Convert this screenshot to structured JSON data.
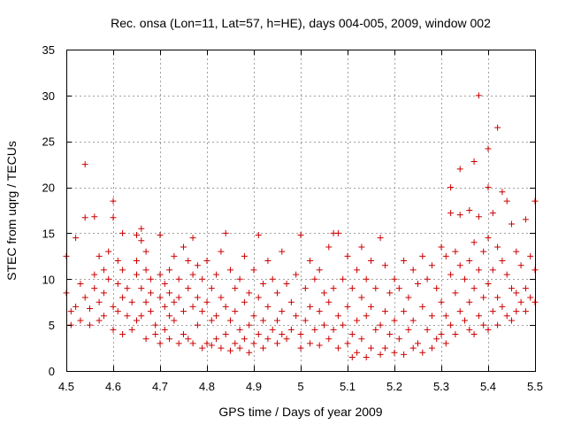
{
  "chart_data": {
    "type": "scatter",
    "title": "Rec. onsa (Lon=11, Lat=57, h=HE), days 004-005, 2009, window 002",
    "xlabel": "GPS time / Days of year 2009",
    "ylabel": "STEC from uqrg / TECUs",
    "xlim": [
      4.5,
      5.5
    ],
    "ylim": [
      0,
      35
    ],
    "xticks": [
      4.5,
      4.6,
      4.7,
      4.8,
      4.9,
      5.0,
      5.1,
      5.2,
      5.3,
      5.4,
      5.5
    ],
    "xtick_labels": [
      "4.5",
      "4.6",
      "4.7",
      "4.8",
      "4.9",
      "5",
      "5.1",
      "5.2",
      "5.3",
      "5.4",
      "5.5"
    ],
    "yticks": [
      0,
      5,
      10,
      15,
      20,
      25,
      30,
      35
    ],
    "ytick_labels": [
      "0",
      "5",
      "10",
      "15",
      "20",
      "25",
      "30",
      "35"
    ],
    "grid": true,
    "marker": "+",
    "color": "#cc0000",
    "series": [
      {
        "name": "STEC",
        "points": [
          [
            4.5,
            12.5
          ],
          [
            4.5,
            8.5
          ],
          [
            4.51,
            6.5
          ],
          [
            4.51,
            5.0
          ],
          [
            4.52,
            14.5
          ],
          [
            4.52,
            7.0
          ],
          [
            4.53,
            5.5
          ],
          [
            4.53,
            9.5
          ],
          [
            4.54,
            22.5
          ],
          [
            4.54,
            16.7
          ],
          [
            4.54,
            8.0
          ],
          [
            4.55,
            5.0
          ],
          [
            4.55,
            6.8
          ],
          [
            4.56,
            16.8
          ],
          [
            4.56,
            9.0
          ],
          [
            4.56,
            10.5
          ],
          [
            4.57,
            12.5
          ],
          [
            4.57,
            7.5
          ],
          [
            4.57,
            5.5
          ],
          [
            4.58,
            11.0
          ],
          [
            4.58,
            8.5
          ],
          [
            4.58,
            6.0
          ],
          [
            4.59,
            13.0
          ],
          [
            4.59,
            10.0
          ],
          [
            4.6,
            18.5
          ],
          [
            4.6,
            16.7
          ],
          [
            4.6,
            7.0
          ],
          [
            4.6,
            4.5
          ],
          [
            4.61,
            12.0
          ],
          [
            4.61,
            9.5
          ],
          [
            4.61,
            6.5
          ],
          [
            4.62,
            15.0
          ],
          [
            4.62,
            11.0
          ],
          [
            4.62,
            8.0
          ],
          [
            4.62,
            4.0
          ],
          [
            4.63,
            9.0
          ],
          [
            4.63,
            6.0
          ],
          [
            4.64,
            7.5
          ],
          [
            4.64,
            4.5
          ],
          [
            4.65,
            14.8
          ],
          [
            4.65,
            12.0
          ],
          [
            4.65,
            10.5
          ],
          [
            4.65,
            5.5
          ],
          [
            4.66,
            15.5
          ],
          [
            4.66,
            14.2
          ],
          [
            4.66,
            9.0
          ],
          [
            4.66,
            6.0
          ],
          [
            4.67,
            13.0
          ],
          [
            4.67,
            11.0
          ],
          [
            4.67,
            7.5
          ],
          [
            4.67,
            3.5
          ],
          [
            4.68,
            10.0
          ],
          [
            4.68,
            8.5
          ],
          [
            4.68,
            6.5
          ],
          [
            4.69,
            5.0
          ],
          [
            4.69,
            4.0
          ],
          [
            4.7,
            14.8
          ],
          [
            4.7,
            10.5
          ],
          [
            4.7,
            8.0
          ],
          [
            4.7,
            3.0
          ],
          [
            4.71,
            9.5
          ],
          [
            4.71,
            7.0
          ],
          [
            4.71,
            4.5
          ],
          [
            4.72,
            11.0
          ],
          [
            4.72,
            8.5
          ],
          [
            4.72,
            6.0
          ],
          [
            4.72,
            3.5
          ],
          [
            4.73,
            12.5
          ],
          [
            4.73,
            7.5
          ],
          [
            4.73,
            5.5
          ],
          [
            4.74,
            10.0
          ],
          [
            4.74,
            8.0
          ],
          [
            4.74,
            3.0
          ],
          [
            4.75,
            13.5
          ],
          [
            4.75,
            6.5
          ],
          [
            4.75,
            4.0
          ],
          [
            4.76,
            12.0
          ],
          [
            4.76,
            9.0
          ],
          [
            4.76,
            3.5
          ],
          [
            4.77,
            14.5
          ],
          [
            4.77,
            10.5
          ],
          [
            4.77,
            7.0
          ],
          [
            4.77,
            3.0
          ],
          [
            4.78,
            11.5
          ],
          [
            4.78,
            8.0
          ],
          [
            4.78,
            5.0
          ],
          [
            4.79,
            10.0
          ],
          [
            4.79,
            6.5
          ],
          [
            4.79,
            2.5
          ],
          [
            4.8,
            12.0
          ],
          [
            4.8,
            7.5
          ],
          [
            4.8,
            3.0
          ],
          [
            4.81,
            9.0
          ],
          [
            4.81,
            5.5
          ],
          [
            4.81,
            2.8
          ],
          [
            4.82,
            10.5
          ],
          [
            4.82,
            6.0
          ],
          [
            4.82,
            3.5
          ],
          [
            4.83,
            13.0
          ],
          [
            4.83,
            8.0
          ],
          [
            4.83,
            2.5
          ],
          [
            4.84,
            15.0
          ],
          [
            4.84,
            7.0
          ],
          [
            4.84,
            4.0
          ],
          [
            4.85,
            11.0
          ],
          [
            4.85,
            5.5
          ],
          [
            4.85,
            2.2
          ],
          [
            4.86,
            9.0
          ],
          [
            4.86,
            6.5
          ],
          [
            4.86,
            3.0
          ],
          [
            4.87,
            10.0
          ],
          [
            4.87,
            4.5
          ],
          [
            4.87,
            2.5
          ],
          [
            4.88,
            12.5
          ],
          [
            4.88,
            7.5
          ],
          [
            4.88,
            3.5
          ],
          [
            4.89,
            8.5
          ],
          [
            4.89,
            5.0
          ],
          [
            4.89,
            2.0
          ],
          [
            4.9,
            11.0
          ],
          [
            4.9,
            6.0
          ],
          [
            4.9,
            3.0
          ],
          [
            4.91,
            14.8
          ],
          [
            4.91,
            8.0
          ],
          [
            4.91,
            4.0
          ],
          [
            4.92,
            9.5
          ],
          [
            4.92,
            5.5
          ],
          [
            4.92,
            2.5
          ],
          [
            4.93,
            12.0
          ],
          [
            4.93,
            7.0
          ],
          [
            4.93,
            3.5
          ],
          [
            4.94,
            10.0
          ],
          [
            4.94,
            4.5
          ],
          [
            4.95,
            8.5
          ],
          [
            4.95,
            5.5
          ],
          [
            4.95,
            3.0
          ],
          [
            4.96,
            13.0
          ],
          [
            4.96,
            6.5
          ],
          [
            4.96,
            4.0
          ],
          [
            4.97,
            9.5
          ],
          [
            4.97,
            3.5
          ],
          [
            4.98,
            7.5
          ],
          [
            4.98,
            4.5
          ],
          [
            4.99,
            10.5
          ],
          [
            4.99,
            6.0
          ],
          [
            5.0,
            14.8
          ],
          [
            5.0,
            4.0
          ],
          [
            5.0,
            2.5
          ],
          [
            5.01,
            9.0
          ],
          [
            5.01,
            5.5
          ],
          [
            5.02,
            12.0
          ],
          [
            5.02,
            7.0
          ],
          [
            5.02,
            3.0
          ],
          [
            5.03,
            10.0
          ],
          [
            5.03,
            4.5
          ],
          [
            5.04,
            11.0
          ],
          [
            5.04,
            6.5
          ],
          [
            5.04,
            2.8
          ],
          [
            5.05,
            8.5
          ],
          [
            5.05,
            5.0
          ],
          [
            5.06,
            13.5
          ],
          [
            5.06,
            7.5
          ],
          [
            5.06,
            3.5
          ],
          [
            5.07,
            15.0
          ],
          [
            5.07,
            9.0
          ],
          [
            5.07,
            4.5
          ],
          [
            5.08,
            15.0
          ],
          [
            5.08,
            6.0
          ],
          [
            5.08,
            2.5
          ],
          [
            5.09,
            10.0
          ],
          [
            5.09,
            5.0
          ],
          [
            5.1,
            12.5
          ],
          [
            5.1,
            7.0
          ],
          [
            5.1,
            3.0
          ],
          [
            5.11,
            9.0
          ],
          [
            5.11,
            4.0
          ],
          [
            5.11,
            1.5
          ],
          [
            5.12,
            11.0
          ],
          [
            5.12,
            5.5
          ],
          [
            5.12,
            2.0
          ],
          [
            5.13,
            13.5
          ],
          [
            5.13,
            8.0
          ],
          [
            5.13,
            3.5
          ],
          [
            5.14,
            10.0
          ],
          [
            5.14,
            6.0
          ],
          [
            5.14,
            1.5
          ],
          [
            5.15,
            12.0
          ],
          [
            5.15,
            7.0
          ],
          [
            5.15,
            2.5
          ],
          [
            5.16,
            9.0
          ],
          [
            5.16,
            4.5
          ],
          [
            5.17,
            14.5
          ],
          [
            5.17,
            5.0
          ],
          [
            5.17,
            1.8
          ],
          [
            5.18,
            11.5
          ],
          [
            5.18,
            6.5
          ],
          [
            5.18,
            2.5
          ],
          [
            5.19,
            8.5
          ],
          [
            5.19,
            4.0
          ],
          [
            5.2,
            10.0
          ],
          [
            5.2,
            5.5
          ],
          [
            5.2,
            2.0
          ],
          [
            5.21,
            9.0
          ],
          [
            5.21,
            3.5
          ],
          [
            5.22,
            12.0
          ],
          [
            5.22,
            6.5
          ],
          [
            5.22,
            1.8
          ],
          [
            5.23,
            8.0
          ],
          [
            5.23,
            4.5
          ],
          [
            5.24,
            11.0
          ],
          [
            5.24,
            5.5
          ],
          [
            5.24,
            2.5
          ],
          [
            5.25,
            9.5
          ],
          [
            5.25,
            3.0
          ],
          [
            5.26,
            12.5
          ],
          [
            5.26,
            7.0
          ],
          [
            5.26,
            2.0
          ],
          [
            5.27,
            10.0
          ],
          [
            5.27,
            4.5
          ],
          [
            5.28,
            11.5
          ],
          [
            5.28,
            6.0
          ],
          [
            5.28,
            2.5
          ],
          [
            5.29,
            9.0
          ],
          [
            5.29,
            3.5
          ],
          [
            5.3,
            13.5
          ],
          [
            5.3,
            7.5
          ],
          [
            5.3,
            4.0
          ],
          [
            5.31,
            12.5
          ],
          [
            5.31,
            6.0
          ],
          [
            5.31,
            3.0
          ],
          [
            5.32,
            20.0
          ],
          [
            5.32,
            17.2
          ],
          [
            5.32,
            10.5
          ],
          [
            5.32,
            5.0
          ],
          [
            5.33,
            13.0
          ],
          [
            5.33,
            8.5
          ],
          [
            5.33,
            4.0
          ],
          [
            5.34,
            22.0
          ],
          [
            5.34,
            17.0
          ],
          [
            5.34,
            11.5
          ],
          [
            5.34,
            6.5
          ],
          [
            5.35,
            10.0
          ],
          [
            5.35,
            5.5
          ],
          [
            5.36,
            17.5
          ],
          [
            5.36,
            12.0
          ],
          [
            5.36,
            7.5
          ],
          [
            5.36,
            4.5
          ],
          [
            5.37,
            22.8
          ],
          [
            5.37,
            14.0
          ],
          [
            5.37,
            9.0
          ],
          [
            5.37,
            4.0
          ],
          [
            5.38,
            30.0
          ],
          [
            5.38,
            16.8
          ],
          [
            5.38,
            11.0
          ],
          [
            5.38,
            6.0
          ],
          [
            5.39,
            13.0
          ],
          [
            5.39,
            8.0
          ],
          [
            5.39,
            5.0
          ],
          [
            5.4,
            24.2
          ],
          [
            5.4,
            20.0
          ],
          [
            5.4,
            14.5
          ],
          [
            5.4,
            9.5
          ],
          [
            5.4,
            4.5
          ],
          [
            5.41,
            17.2
          ],
          [
            5.41,
            11.0
          ],
          [
            5.41,
            6.5
          ],
          [
            5.42,
            26.5
          ],
          [
            5.42,
            13.5
          ],
          [
            5.42,
            8.0
          ],
          [
            5.42,
            5.0
          ],
          [
            5.43,
            19.5
          ],
          [
            5.43,
            12.0
          ],
          [
            5.43,
            7.0
          ],
          [
            5.44,
            18.5
          ],
          [
            5.44,
            10.5
          ],
          [
            5.44,
            6.0
          ],
          [
            5.45,
            16.0
          ],
          [
            5.45,
            9.0
          ],
          [
            5.45,
            5.5
          ],
          [
            5.46,
            13.0
          ],
          [
            5.46,
            8.5
          ],
          [
            5.46,
            6.5
          ],
          [
            5.47,
            11.5
          ],
          [
            5.47,
            7.5
          ],
          [
            5.48,
            16.5
          ],
          [
            5.48,
            9.0
          ],
          [
            5.48,
            6.5
          ],
          [
            5.49,
            12.5
          ],
          [
            5.49,
            8.0
          ],
          [
            5.5,
            18.5
          ],
          [
            5.5,
            11.0
          ],
          [
            5.5,
            7.5
          ]
        ]
      }
    ]
  }
}
